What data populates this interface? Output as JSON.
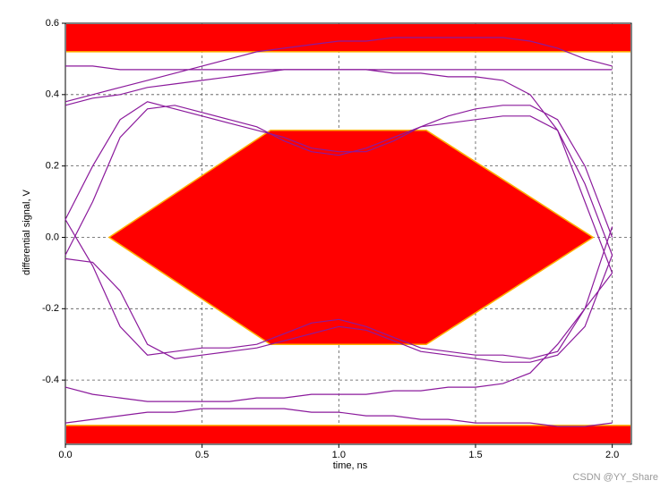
{
  "chart_data": {
    "type": "line",
    "x_label": "time, ns",
    "y_label": "differential signal, V",
    "watermark": "CSDN @YY_Share",
    "xlim": [
      0,
      2.07
    ],
    "ylim": [
      -0.58,
      0.6
    ],
    "xticks": [
      {
        "value": 0,
        "label": "0.0"
      },
      0.5,
      {
        "value": 1,
        "label": "1.0"
      },
      1.5,
      {
        "value": 2,
        "label": "2.0"
      }
    ],
    "yticks": [
      0.6,
      0.4,
      0.2,
      {
        "value": 0,
        "label": "0.0"
      },
      -0.2,
      -0.4
    ],
    "grid": true,
    "mask": {
      "color": "#ff0000",
      "edge_color": "#ffb000",
      "top": 0.52,
      "bottom": -0.527,
      "polygon_x": [
        0.16,
        0.75,
        1.32,
        1.93,
        1.32,
        0.75
      ],
      "polygon_y": [
        0,
        0.3,
        0.3,
        0,
        -0.3,
        -0.3
      ]
    },
    "x": [
      0,
      0.1,
      0.2,
      0.3,
      0.4,
      0.5,
      0.6,
      0.7,
      0.8,
      0.9,
      1.0,
      1.1,
      1.2,
      1.3,
      1.4,
      1.5,
      1.6,
      1.7,
      1.8,
      1.9,
      2.0
    ],
    "series": [
      {
        "color": "#8b1a9c",
        "values": [
          0.48,
          0.48,
          0.47,
          0.47,
          0.47,
          0.47,
          0.47,
          0.47,
          0.47,
          0.47,
          0.47,
          0.47,
          0.47,
          0.47,
          0.47,
          0.47,
          0.47,
          0.47,
          0.47,
          0.47,
          0.47
        ]
      },
      {
        "color": "#8b1a9c",
        "values": [
          0.38,
          0.4,
          0.42,
          0.44,
          0.46,
          0.48,
          0.5,
          0.52,
          0.53,
          0.54,
          0.55,
          0.55,
          0.56,
          0.56,
          0.56,
          0.56,
          0.56,
          0.55,
          0.53,
          0.5,
          0.48
        ]
      },
      {
        "color": "#8b1a9c",
        "values": [
          -0.05,
          0.1,
          0.28,
          0.36,
          0.37,
          0.35,
          0.33,
          0.31,
          0.27,
          0.24,
          0.23,
          0.25,
          0.28,
          0.31,
          0.32,
          0.33,
          0.34,
          0.34,
          0.3,
          0.15,
          -0.05
        ]
      },
      {
        "color": "#8b1a9c",
        "values": [
          0.05,
          0.2,
          0.33,
          0.38,
          0.36,
          0.34,
          0.32,
          0.3,
          0.28,
          0.25,
          0.24,
          0.24,
          0.27,
          0.31,
          0.34,
          0.36,
          0.37,
          0.37,
          0.33,
          0.2,
          0.0
        ]
      },
      {
        "color": "#8b1a9c",
        "values": [
          0.05,
          -0.08,
          -0.25,
          -0.33,
          -0.32,
          -0.31,
          -0.31,
          -0.3,
          -0.27,
          -0.24,
          -0.23,
          -0.25,
          -0.28,
          -0.31,
          -0.32,
          -0.33,
          -0.33,
          -0.34,
          -0.32,
          -0.2,
          0.03
        ]
      },
      {
        "color": "#8b1a9c",
        "values": [
          -0.06,
          -0.07,
          -0.15,
          -0.3,
          -0.34,
          -0.33,
          -0.32,
          -0.31,
          -0.29,
          -0.27,
          -0.25,
          -0.26,
          -0.29,
          -0.32,
          -0.33,
          -0.34,
          -0.35,
          -0.35,
          -0.33,
          -0.25,
          -0.05
        ]
      },
      {
        "color": "#8b1a9c",
        "values": [
          -0.42,
          -0.44,
          -0.45,
          -0.46,
          -0.46,
          -0.46,
          -0.46,
          -0.45,
          -0.45,
          -0.44,
          -0.44,
          -0.44,
          -0.43,
          -0.43,
          -0.42,
          -0.42,
          -0.41,
          -0.38,
          -0.3,
          -0.2,
          -0.1
        ]
      },
      {
        "color": "#8b1a9c",
        "values": [
          -0.52,
          -0.51,
          -0.5,
          -0.49,
          -0.49,
          -0.48,
          -0.48,
          -0.48,
          -0.48,
          -0.49,
          -0.49,
          -0.5,
          -0.5,
          -0.51,
          -0.51,
          -0.52,
          -0.52,
          -0.52,
          -0.53,
          -0.53,
          -0.52
        ]
      },
      {
        "color": "#8b1a9c",
        "values": [
          0.37,
          0.39,
          0.4,
          0.42,
          0.43,
          0.44,
          0.45,
          0.46,
          0.47,
          0.47,
          0.47,
          0.47,
          0.46,
          0.46,
          0.45,
          0.45,
          0.44,
          0.4,
          0.3,
          0.1,
          -0.1
        ]
      }
    ]
  }
}
